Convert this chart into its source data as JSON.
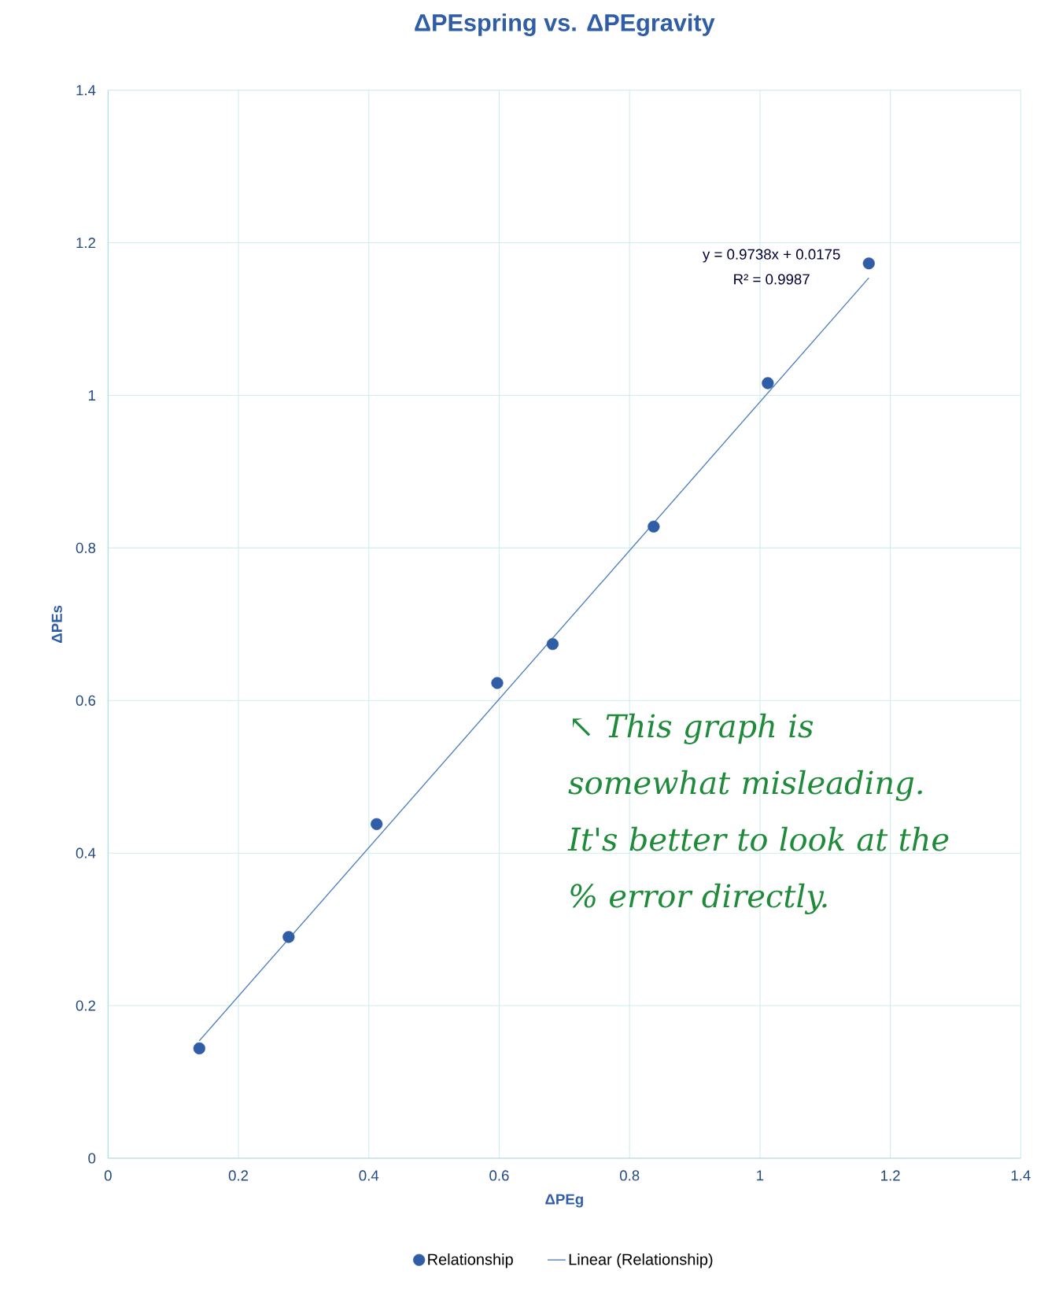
{
  "chart_data": {
    "type": "scatter",
    "title": "ΔPEspring vs. ΔPEgravity",
    "xlabel": "ΔPEg",
    "ylabel": "ΔPEs",
    "xlim": [
      0,
      1.4
    ],
    "ylim": [
      0,
      1.4
    ],
    "xticks": [
      0,
      0.2,
      0.4,
      0.6,
      0.8,
      1,
      1.2,
      1.4
    ],
    "yticks": [
      0,
      0.2,
      0.4,
      0.6,
      0.8,
      1,
      1.2,
      1.4
    ],
    "grid": true,
    "legend": "bottom",
    "series": [
      {
        "name": "Relationship",
        "marker": "circle",
        "color": "#2f5da6",
        "x": [
          0.14,
          0.277,
          0.412,
          0.597,
          0.682,
          0.837,
          1.012,
          1.167
        ],
        "values": [
          0.144,
          0.29,
          0.438,
          0.623,
          0.674,
          0.828,
          1.016,
          1.173
        ]
      },
      {
        "name": "Linear (Relationship)",
        "type": "line",
        "color": "#4a7ebb",
        "x": [
          0.14,
          1.167
        ],
        "values": [
          0.154,
          1.154
        ],
        "marker": "none"
      }
    ],
    "annotations": [
      "y = 0.9738x + 0.0175",
      "R² = 0.9987",
      "↖ This graph is somewhat misleading. It's better to look at the % error directly."
    ]
  }
}
